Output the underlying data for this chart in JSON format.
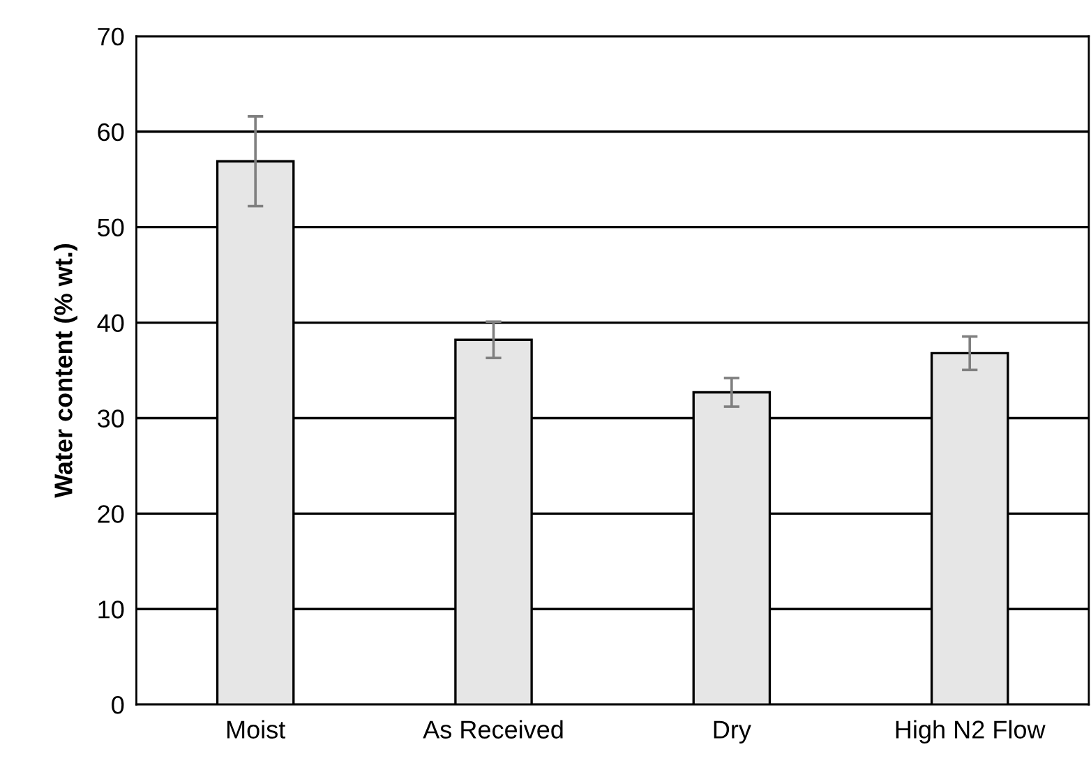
{
  "chart_data": {
    "type": "bar",
    "ylabel": "Water content (% wt.)",
    "categories": [
      "Moist",
      "As Received",
      "Dry",
      "High N2 Flow"
    ],
    "values": [
      56.9,
      38.2,
      32.7,
      36.8
    ],
    "errors": [
      4.7,
      1.9,
      1.5,
      1.75
    ],
    "color": "#e6e6e6",
    "ylim": [
      0,
      70
    ],
    "yticks": [
      0,
      10,
      20,
      30,
      40,
      50,
      60,
      70
    ],
    "grid": "y"
  }
}
